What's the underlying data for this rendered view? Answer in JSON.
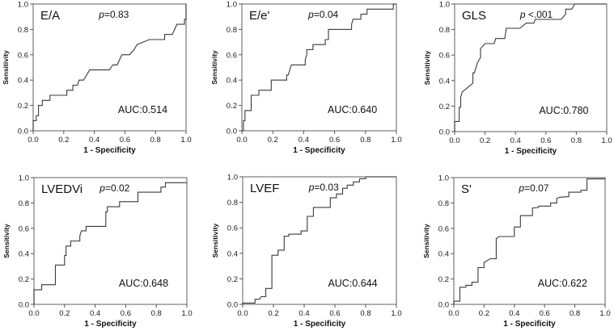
{
  "chart_data": [
    {
      "type": "line",
      "title": "E/A",
      "p_value_label": "=0.83",
      "p_symbol": "p",
      "auc_label": "AUC:0.514",
      "xlabel": "1 - Specificity",
      "ylabel": "Sensitivity",
      "xlim": [
        0,
        1
      ],
      "ylim": [
        0,
        1
      ],
      "xticks": [
        "0.0",
        "0.2",
        "0.4",
        "0.6",
        "0.8",
        "1.0"
      ],
      "yticks": [
        "0.0",
        "0.2",
        "0.4",
        "0.6",
        "0.8",
        "1.0"
      ],
      "points": [
        [
          0,
          0
        ],
        [
          0,
          0.08
        ],
        [
          0.02,
          0.08
        ],
        [
          0.02,
          0.12
        ],
        [
          0.035,
          0.12
        ],
        [
          0.035,
          0.2
        ],
        [
          0.06,
          0.2
        ],
        [
          0.06,
          0.24
        ],
        [
          0.11,
          0.24
        ],
        [
          0.11,
          0.28
        ],
        [
          0.22,
          0.28
        ],
        [
          0.22,
          0.32
        ],
        [
          0.26,
          0.32
        ],
        [
          0.26,
          0.36
        ],
        [
          0.29,
          0.36
        ],
        [
          0.3,
          0.4
        ],
        [
          0.33,
          0.4
        ],
        [
          0.35,
          0.44
        ],
        [
          0.37,
          0.48
        ],
        [
          0.5,
          0.48
        ],
        [
          0.52,
          0.52
        ],
        [
          0.55,
          0.52
        ],
        [
          0.58,
          0.6
        ],
        [
          0.63,
          0.6
        ],
        [
          0.66,
          0.64
        ],
        [
          0.68,
          0.68
        ],
        [
          0.72,
          0.7
        ],
        [
          0.76,
          0.72
        ],
        [
          0.86,
          0.72
        ],
        [
          0.86,
          0.76
        ],
        [
          0.91,
          0.76
        ],
        [
          0.94,
          0.84
        ],
        [
          0.99,
          0.84
        ],
        [
          0.99,
          0.88
        ],
        [
          1.0,
          0.88
        ],
        [
          1.0,
          1.0
        ]
      ]
    },
    {
      "type": "line",
      "title": "E/e'",
      "p_value_label": "=0.04",
      "p_symbol": "p",
      "auc_label": "AUC:0.640",
      "xlabel": "1 - Specificity",
      "ylabel": "Sensitivity",
      "xlim": [
        0,
        1
      ],
      "ylim": [
        0,
        1
      ],
      "xticks": [
        "0.0",
        "0.2",
        "0.4",
        "0.6",
        "0.8",
        "1.0"
      ],
      "yticks": [
        "0.0",
        "0.2",
        "0.4",
        "0.6",
        "0.8",
        "1.0"
      ],
      "points": [
        [
          0,
          0
        ],
        [
          0.01,
          0
        ],
        [
          0.01,
          0.08
        ],
        [
          0.02,
          0.08
        ],
        [
          0.02,
          0.16
        ],
        [
          0.06,
          0.16
        ],
        [
          0.06,
          0.28
        ],
        [
          0.11,
          0.28
        ],
        [
          0.11,
          0.32
        ],
        [
          0.19,
          0.32
        ],
        [
          0.19,
          0.4
        ],
        [
          0.29,
          0.4
        ],
        [
          0.29,
          0.44
        ],
        [
          0.3,
          0.44
        ],
        [
          0.31,
          0.48
        ],
        [
          0.32,
          0.52
        ],
        [
          0.41,
          0.52
        ],
        [
          0.41,
          0.56
        ],
        [
          0.42,
          0.6
        ],
        [
          0.42,
          0.64
        ],
        [
          0.46,
          0.64
        ],
        [
          0.46,
          0.68
        ],
        [
          0.54,
          0.68
        ],
        [
          0.54,
          0.72
        ],
        [
          0.56,
          0.72
        ],
        [
          0.56,
          0.8
        ],
        [
          0.71,
          0.8
        ],
        [
          0.71,
          0.84
        ],
        [
          0.72,
          0.88
        ],
        [
          0.77,
          0.88
        ],
        [
          0.77,
          0.92
        ],
        [
          0.81,
          0.92
        ],
        [
          0.81,
          0.96
        ],
        [
          0.98,
          0.96
        ],
        [
          0.98,
          1.0
        ],
        [
          1.0,
          1.0
        ]
      ]
    },
    {
      "type": "line",
      "title": "GLS",
      "p_value_label": " <.001",
      "p_symbol": "p",
      "auc_label": "AUC:0.780",
      "xlabel": "1 - Specificity",
      "ylabel": "Sensitivity",
      "xlim": [
        0,
        1
      ],
      "ylim": [
        0,
        1
      ],
      "xticks": [
        "0.0",
        "0.2",
        "0.4",
        "0.6",
        "0.8",
        "1.0"
      ],
      "yticks": [
        "0.0",
        "0.2",
        "0.4",
        "0.6",
        "0.8",
        "1.0"
      ],
      "points": [
        [
          0,
          0
        ],
        [
          0,
          0.08
        ],
        [
          0.03,
          0.08
        ],
        [
          0.03,
          0.19
        ],
        [
          0.04,
          0.19
        ],
        [
          0.04,
          0.27
        ],
        [
          0.05,
          0.31
        ],
        [
          0.12,
          0.38
        ],
        [
          0.12,
          0.46
        ],
        [
          0.13,
          0.46
        ],
        [
          0.15,
          0.54
        ],
        [
          0.17,
          0.58
        ],
        [
          0.17,
          0.65
        ],
        [
          0.2,
          0.69
        ],
        [
          0.26,
          0.69
        ],
        [
          0.27,
          0.73
        ],
        [
          0.33,
          0.73
        ],
        [
          0.34,
          0.81
        ],
        [
          0.43,
          0.81
        ],
        [
          0.47,
          0.85
        ],
        [
          0.52,
          0.85
        ],
        [
          0.53,
          0.88
        ],
        [
          0.7,
          0.88
        ],
        [
          0.73,
          0.92
        ],
        [
          0.73,
          0.96
        ],
        [
          0.77,
          0.96
        ],
        [
          0.79,
          1.0
        ],
        [
          1.0,
          1.0
        ]
      ]
    },
    {
      "type": "line",
      "title": "LVEDVi",
      "p_value_label": "=0.02",
      "p_symbol": "p",
      "auc_label": "AUC:0.648",
      "xlabel": "1 - Specificity",
      "ylabel": "Sensitivity",
      "xlim": [
        0,
        1
      ],
      "ylim": [
        0,
        1
      ],
      "xticks": [
        "0.0",
        "0.2",
        "0.4",
        "0.6",
        "0.8",
        "1.0"
      ],
      "yticks": [
        "0.0",
        "0.2",
        "0.4",
        "0.6",
        "0.8",
        "1.0"
      ],
      "points": [
        [
          0,
          0
        ],
        [
          0,
          0.115
        ],
        [
          0.05,
          0.115
        ],
        [
          0.05,
          0.155
        ],
        [
          0.14,
          0.155
        ],
        [
          0.14,
          0.31
        ],
        [
          0.2,
          0.31
        ],
        [
          0.2,
          0.385
        ],
        [
          0.21,
          0.385
        ],
        [
          0.21,
          0.46
        ],
        [
          0.24,
          0.46
        ],
        [
          0.24,
          0.5
        ],
        [
          0.3,
          0.5
        ],
        [
          0.3,
          0.54
        ],
        [
          0.31,
          0.58
        ],
        [
          0.34,
          0.58
        ],
        [
          0.34,
          0.615
        ],
        [
          0.47,
          0.615
        ],
        [
          0.47,
          0.73
        ],
        [
          0.48,
          0.73
        ],
        [
          0.48,
          0.77
        ],
        [
          0.56,
          0.77
        ],
        [
          0.56,
          0.81
        ],
        [
          0.68,
          0.81
        ],
        [
          0.68,
          0.885
        ],
        [
          0.83,
          0.885
        ],
        [
          0.83,
          0.925
        ],
        [
          0.86,
          0.925
        ],
        [
          0.86,
          0.96
        ],
        [
          1.0,
          0.96
        ]
      ]
    },
    {
      "type": "line",
      "title": "LVEF",
      "p_value_label": "=0.03",
      "p_symbol": "p",
      "auc_label": "AUC:0.644",
      "xlabel": "1 - Specificity",
      "ylabel": "Sensitivity",
      "xlim": [
        0,
        1
      ],
      "ylim": [
        0,
        1
      ],
      "xticks": [
        "0.0",
        "0.2",
        "0.4",
        "0.6",
        "0.8",
        "1.0"
      ],
      "yticks": [
        "0.0",
        "0.2",
        "0.4",
        "0.6",
        "0.8",
        "1.0"
      ],
      "points": [
        [
          0,
          0
        ],
        [
          0,
          0.01
        ],
        [
          0.08,
          0.01
        ],
        [
          0.08,
          0.04
        ],
        [
          0.11,
          0.04
        ],
        [
          0.12,
          0.06
        ],
        [
          0.15,
          0.06
        ],
        [
          0.15,
          0.125
        ],
        [
          0.19,
          0.125
        ],
        [
          0.19,
          0.385
        ],
        [
          0.23,
          0.385
        ],
        [
          0.23,
          0.425
        ],
        [
          0.27,
          0.425
        ],
        [
          0.27,
          0.535
        ],
        [
          0.3,
          0.535
        ],
        [
          0.3,
          0.55
        ],
        [
          0.38,
          0.55
        ],
        [
          0.38,
          0.575
        ],
        [
          0.42,
          0.575
        ],
        [
          0.42,
          0.69
        ],
        [
          0.46,
          0.69
        ],
        [
          0.46,
          0.76
        ],
        [
          0.57,
          0.76
        ],
        [
          0.57,
          0.835
        ],
        [
          0.61,
          0.835
        ],
        [
          0.61,
          0.865
        ],
        [
          0.65,
          0.865
        ],
        [
          0.65,
          0.91
        ],
        [
          0.68,
          0.91
        ],
        [
          0.68,
          0.935
        ],
        [
          0.72,
          0.935
        ],
        [
          0.72,
          0.96
        ],
        [
          0.76,
          0.96
        ],
        [
          0.76,
          0.985
        ],
        [
          0.8,
          0.985
        ],
        [
          0.8,
          1.0
        ],
        [
          1.0,
          1.0
        ]
      ]
    },
    {
      "type": "line",
      "title": "S'",
      "p_value_label": "=0.07",
      "p_symbol": "p",
      "auc_label": "AUC:0.622",
      "xlabel": "1 - Specificity",
      "ylabel": "Sensitivity",
      "xlim": [
        0,
        1
      ],
      "ylim": [
        0,
        1
      ],
      "xticks": [
        "0.0",
        "0.2",
        "0.4",
        "0.6",
        "0.8",
        "1.0"
      ],
      "yticks": [
        "0.0",
        "0.2",
        "0.4",
        "0.6",
        "0.8",
        "1.0"
      ],
      "points": [
        [
          0,
          0
        ],
        [
          0,
          0.025
        ],
        [
          0.04,
          0.025
        ],
        [
          0.04,
          0.135
        ],
        [
          0.08,
          0.135
        ],
        [
          0.08,
          0.15
        ],
        [
          0.12,
          0.15
        ],
        [
          0.12,
          0.175
        ],
        [
          0.16,
          0.175
        ],
        [
          0.16,
          0.29
        ],
        [
          0.2,
          0.29
        ],
        [
          0.2,
          0.33
        ],
        [
          0.24,
          0.36
        ],
        [
          0.28,
          0.36
        ],
        [
          0.28,
          0.52
        ],
        [
          0.3,
          0.535
        ],
        [
          0.4,
          0.535
        ],
        [
          0.4,
          0.61
        ],
        [
          0.44,
          0.61
        ],
        [
          0.44,
          0.7
        ],
        [
          0.52,
          0.7
        ],
        [
          0.52,
          0.76
        ],
        [
          0.56,
          0.765
        ],
        [
          0.56,
          0.775
        ],
        [
          0.64,
          0.775
        ],
        [
          0.64,
          0.8
        ],
        [
          0.68,
          0.8
        ],
        [
          0.68,
          0.835
        ],
        [
          0.7,
          0.845
        ],
        [
          0.76,
          0.85
        ],
        [
          0.76,
          0.885
        ],
        [
          0.84,
          0.885
        ],
        [
          0.84,
          0.9
        ],
        [
          0.88,
          0.9
        ],
        [
          0.88,
          0.99
        ],
        [
          1.0,
          0.99
        ]
      ]
    }
  ]
}
